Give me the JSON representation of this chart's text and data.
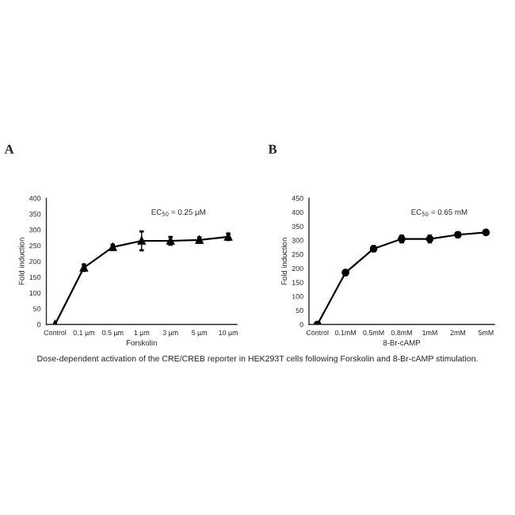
{
  "chart_data": [
    {
      "type": "line",
      "title": "A",
      "xlabel": "Forskolin",
      "ylabel": "Fold induction",
      "categories": [
        "Control",
        "0.1 µm",
        "0.5 µm",
        "1 µm",
        "3 µm",
        "5 µm",
        "10 µm"
      ],
      "series": [
        {
          "color": "#000000",
          "values": [
            0,
            180,
            245,
            265,
            265,
            268,
            278
          ],
          "errors": [
            null,
            10,
            8,
            30,
            12,
            8,
            10
          ]
        }
      ],
      "ylim": [
        0,
        400
      ],
      "yticks": [
        0,
        50,
        100,
        150,
        200,
        250,
        300,
        350,
        400
      ],
      "marker": "triangle",
      "line_style": "solid",
      "annotations": [
        {
          "text": "EC$_{50}$ = 0.25 µM"
        },
        {
          "text": "Dose-dependent activation of the CRE/CREB reporter in HEK293T cells following Forskolin and 8-Br-cAMP stimulation."
        }
      ]
    },
    {
      "type": "line",
      "title": "B",
      "xlabel": "8-Br-cAMP",
      "ylabel": "Fold induction",
      "categories": [
        "Control",
        "0.1mM",
        "0.5mM",
        "0.8mM",
        "1mM",
        "2mM",
        "5mM"
      ],
      "series": [
        {
          "color": "#000000",
          "values": [
            0,
            185,
            270,
            305,
            305,
            320,
            328
          ],
          "errors": [
            null,
            8,
            8,
            12,
            12,
            8,
            6
          ]
        }
      ],
      "ylim": [
        0,
        450
      ],
      "yticks": [
        0,
        50,
        100,
        150,
        200,
        250,
        300,
        350,
        400,
        450
      ],
      "marker": "circle",
      "line_style": "solid",
      "annotations": [
        {
          "text": "EC$_{50}$ = 0.65 mM"
        }
      ]
    }
  ]
}
